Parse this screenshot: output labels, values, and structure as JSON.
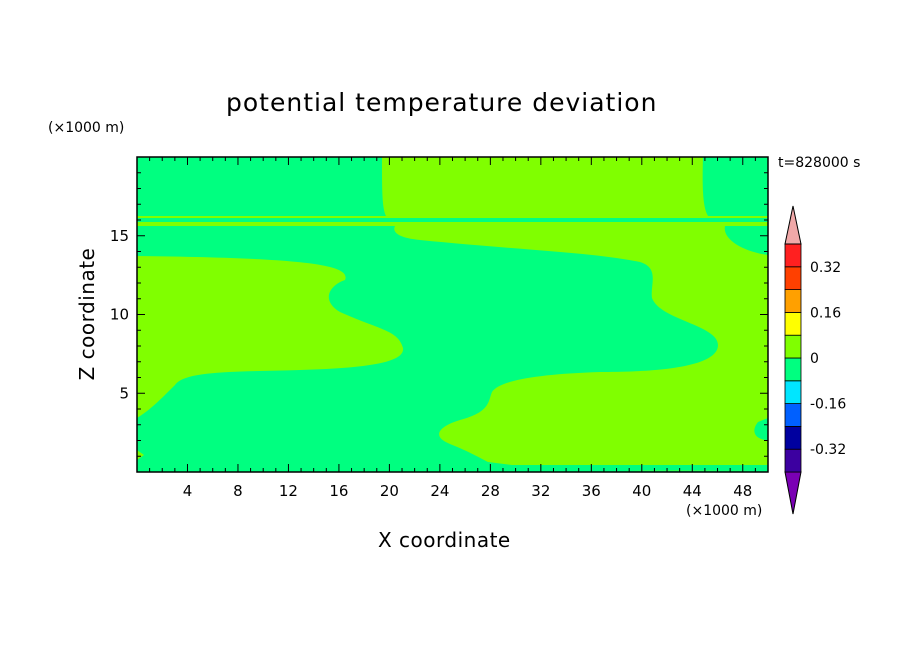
{
  "chart_data": {
    "type": "heatmap",
    "title": "potential temperature deviation",
    "xlabel": "X coordinate",
    "ylabel": "Z coordinate",
    "x_unit": "(×1000 m)",
    "y_unit": "(×1000 m)",
    "timestamp": "t=828000 s",
    "xlim": [
      0,
      50
    ],
    "ylim": [
      0,
      20
    ],
    "x_ticks": [
      4,
      8,
      12,
      16,
      20,
      24,
      28,
      32,
      36,
      40,
      44,
      48
    ],
    "y_ticks": [
      5,
      10,
      15
    ],
    "colorbar": {
      "levels": [
        -0.4,
        -0.32,
        -0.24,
        -0.16,
        -0.08,
        0,
        0.08,
        0.16,
        0.24,
        0.32,
        0.4
      ],
      "tick_labels": [
        "0.32",
        "0.16",
        "0",
        "-0.16",
        "-0.32"
      ],
      "tick_values": [
        0.32,
        0.16,
        0,
        -0.16,
        -0.32
      ],
      "colors": [
        "#7a00b4",
        "#3c00a0",
        "#00009f",
        "#0060ff",
        "#00e6ff",
        "#00ff80",
        "#80ff00",
        "#ffff00",
        "#ffa000",
        "#ff4000",
        "#ff2020",
        "#f0a8a8"
      ]
    },
    "field_regions": {
      "background_level": "0 to 0.08",
      "background_color": "#80ff00",
      "band_level": "-0.08 to 0",
      "band_color": "#00ff80"
    }
  }
}
